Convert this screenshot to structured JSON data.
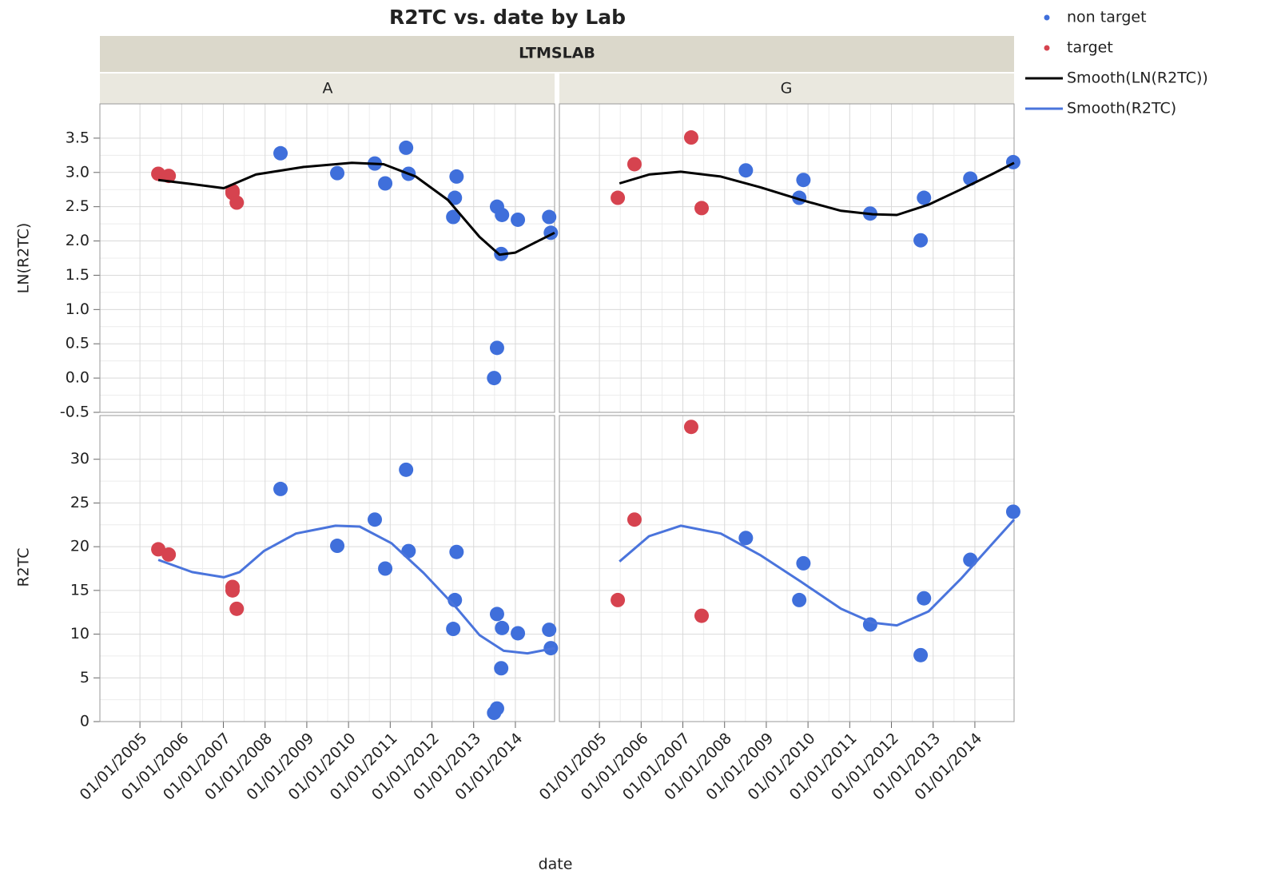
{
  "chart_data": {
    "type": "scatter",
    "title": "R2TC vs. date by Lab",
    "facet_label": "LTMSLAB",
    "x_label": "date",
    "legend_position": "right",
    "grid": true,
    "xlim": [
      2004.04,
      2014.94
    ],
    "xticks": [
      {
        "value": 2005,
        "label": "01/01/2005"
      },
      {
        "value": 2006,
        "label": "01/01/2006"
      },
      {
        "value": 2007,
        "label": "01/01/2007"
      },
      {
        "value": 2008,
        "label": "01/01/2008"
      },
      {
        "value": 2009,
        "label": "01/01/2009"
      },
      {
        "value": 2010,
        "label": "01/01/2010"
      },
      {
        "value": 2011,
        "label": "01/01/2011"
      },
      {
        "value": 2012,
        "label": "01/01/2012"
      },
      {
        "value": 2013,
        "label": "01/01/2013"
      },
      {
        "value": 2014,
        "label": "01/01/2014"
      }
    ],
    "rows": [
      {
        "y_label": "LN(R2TC)",
        "ylim": [
          -0.5,
          4.0
        ],
        "yticks": [
          -0.5,
          {
            "value": 0,
            "label": "0.0"
          },
          0.5,
          {
            "value": 1,
            "label": "1.0"
          },
          1.5,
          {
            "value": 2,
            "label": "2.0"
          },
          2.5,
          {
            "value": 3,
            "label": "3.0"
          },
          3.5
        ]
      },
      {
        "y_label": "R2TC",
        "ylim": [
          0,
          35
        ],
        "yticks": [
          0,
          5,
          10,
          15,
          20,
          25,
          30
        ]
      }
    ],
    "panels": [
      {
        "label": "A",
        "points": [
          {
            "name": "non target",
            "color": "#3f6fdb",
            "x": [
              2008.37,
              2009.73,
              2010.63,
              2010.88,
              2011.38,
              2011.44,
              2012.51,
              2012.55,
              2012.59,
              2013.56,
              2013.68,
              2013.66,
              2013.56,
              2013.49,
              2014.06,
              2014.81,
              2014.85
            ],
            "ln": [
              3.28,
              2.99,
              3.13,
              2.84,
              3.36,
              2.98,
              2.35,
              2.63,
              2.94,
              2.5,
              2.38,
              1.81,
              0.44,
              0.0,
              2.31,
              2.35,
              2.12
            ],
            "values": [
              26.6,
              20.1,
              23.1,
              17.5,
              28.8,
              19.5,
              10.6,
              13.9,
              19.4,
              12.3,
              10.7,
              6.1,
              1.5,
              1.0,
              10.1,
              10.5,
              8.4
            ]
          },
          {
            "name": "target",
            "color": "#d6434f",
            "x": [
              2005.44,
              2005.69,
              2007.22,
              2007.22,
              2007.32
            ],
            "ln": [
              2.98,
              2.95,
              2.73,
              2.7,
              2.56
            ],
            "values": [
              19.7,
              19.1,
              15.4,
              15.0,
              12.9
            ]
          }
        ],
        "smooth": [
          {
            "name": "Smooth(LN(R2TC))",
            "color": "#000000",
            "x": [
              2005.44,
              2006.25,
              2007.01,
              2007.78,
              2008.93,
              2010.08,
              2010.84,
              2011.61,
              2012.38,
              2013.14,
              2013.62,
              2014.0,
              2014.48,
              2014.94
            ],
            "values": [
              2.89,
              2.83,
              2.77,
              2.97,
              3.08,
              3.14,
              3.12,
              2.94,
              2.6,
              2.06,
              1.8,
              1.83,
              1.98,
              2.12
            ]
          },
          {
            "name": "Smooth(R2TC)",
            "color": "#4a74dc",
            "x": [
              2005.44,
              2006.25,
              2007.01,
              2007.39,
              2007.97,
              2008.74,
              2009.69,
              2010.27,
              2011.03,
              2011.8,
              2012.57,
              2013.14,
              2013.72,
              2014.29,
              2014.94
            ],
            "values": [
              18.5,
              17.1,
              16.5,
              17.1,
              19.5,
              21.5,
              22.4,
              22.3,
              20.4,
              17.0,
              13.1,
              9.9,
              8.1,
              7.8,
              8.4
            ]
          }
        ]
      },
      {
        "label": "G",
        "points": [
          {
            "name": "non target",
            "color": "#3f6fdb",
            "x": [
              2008.51,
              2009.79,
              2009.89,
              2011.49,
              2012.7,
              2012.78,
              2013.89,
              2014.92
            ],
            "ln": [
              3.03,
              2.63,
              2.89,
              2.4,
              2.01,
              2.63,
              2.91,
              3.15
            ],
            "values": [
              21.0,
              13.9,
              18.1,
              11.1,
              7.6,
              14.1,
              18.5,
              24.0
            ]
          },
          {
            "name": "target",
            "color": "#d6434f",
            "x": [
              2005.44,
              2005.84,
              2007.2,
              2007.45
            ],
            "ln": [
              2.63,
              3.12,
              3.51,
              2.48
            ],
            "values": [
              13.9,
              23.1,
              33.7,
              12.1
            ]
          }
        ],
        "smooth": [
          {
            "name": "Smooth(LN(R2TC))",
            "color": "#000000",
            "x": [
              2005.48,
              2006.19,
              2006.95,
              2007.91,
              2008.87,
              2009.83,
              2010.79,
              2011.55,
              2012.13,
              2012.89,
              2013.66,
              2014.43,
              2014.94
            ],
            "values": [
              2.84,
              2.97,
              3.01,
              2.94,
              2.78,
              2.6,
              2.44,
              2.39,
              2.38,
              2.53,
              2.75,
              2.98,
              3.14
            ]
          },
          {
            "name": "Smooth(R2TC)",
            "color": "#4a74dc",
            "x": [
              2005.48,
              2006.19,
              2006.95,
              2007.91,
              2008.87,
              2009.83,
              2010.79,
              2011.55,
              2012.13,
              2012.89,
              2013.66,
              2014.43,
              2014.94
            ],
            "values": [
              18.3,
              21.2,
              22.4,
              21.5,
              19.0,
              16.0,
              12.9,
              11.3,
              11.0,
              12.6,
              16.3,
              20.4,
              23.1
            ]
          }
        ]
      }
    ]
  }
}
